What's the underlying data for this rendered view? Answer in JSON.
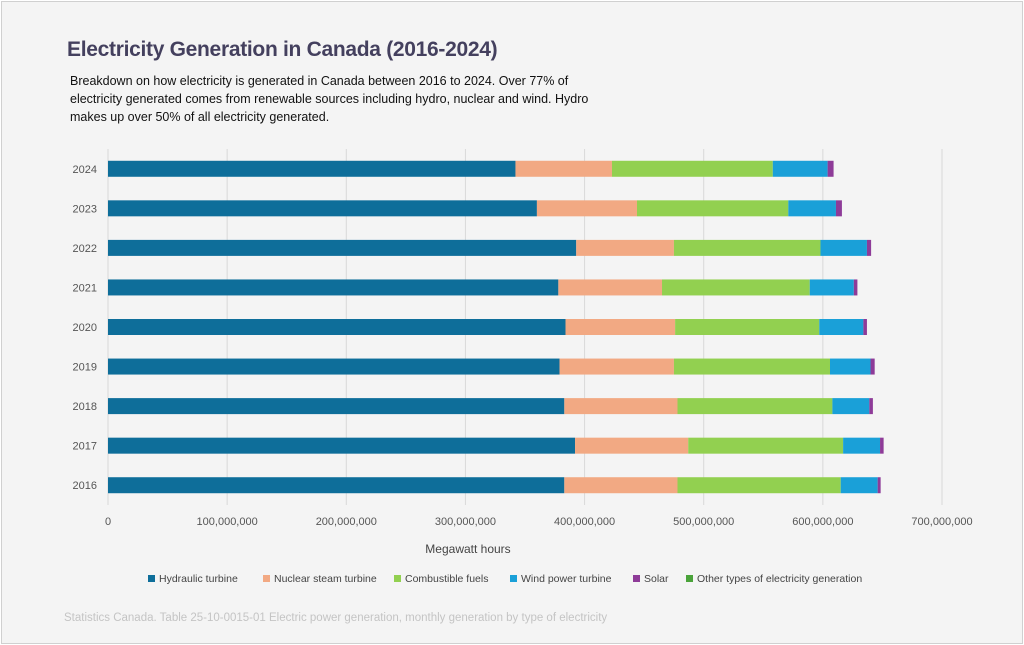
{
  "header": {
    "title": "Electricity Generation in Canada (2016-2024)",
    "subtitle": "Breakdown on how electricity is generated in Canada between 2016 to 2024. Over 77% of electricity generated comes from renewable sources including hydro, nuclear and wind. Hydro makes up over 50% of all electricity generated."
  },
  "source": "Statistics Canada. Table 25-10-0015-01  Electric power generation, monthly generation by type of electricity",
  "chart_data": {
    "type": "bar",
    "orientation": "horizontal",
    "stacked": true,
    "title": "Electricity Generation in Canada (2016-2024)",
    "xlabel": "Megawatt hours",
    "ylabel": "",
    "xlim": [
      0,
      700000000
    ],
    "xticks": [
      0,
      100000000,
      200000000,
      300000000,
      400000000,
      500000000,
      600000000,
      700000000
    ],
    "xtick_labels": [
      "0",
      "100,000,000",
      "200,000,000",
      "300,000,000",
      "400,000,000",
      "500,000,000",
      "600,000,000",
      "700,000,000"
    ],
    "grid": true,
    "legend_position": "bottom",
    "categories": [
      "2024",
      "2023",
      "2022",
      "2021",
      "2020",
      "2019",
      "2018",
      "2017",
      "2016"
    ],
    "series": [
      {
        "name": "Hydraulic turbine",
        "color": "#0e6e9a",
        "values": [
          342000000,
          360000000,
          393000000,
          378000000,
          384000000,
          379000000,
          383000000,
          392000000,
          383000000
        ]
      },
      {
        "name": "Nuclear steam turbine",
        "color": "#f2a983",
        "values": [
          81000000,
          84000000,
          82000000,
          87000000,
          92000000,
          96000000,
          95000000,
          95000000,
          95000000
        ]
      },
      {
        "name": "Combustible fuels",
        "color": "#92d050",
        "values": [
          135000000,
          127000000,
          123000000,
          124000000,
          121000000,
          131000000,
          130000000,
          130000000,
          137000000
        ]
      },
      {
        "name": "Wind power turbine",
        "color": "#1aa0d8",
        "values": [
          46000000,
          40000000,
          39000000,
          37000000,
          37000000,
          34000000,
          31000000,
          31000000,
          31000000
        ]
      },
      {
        "name": "Solar",
        "color": "#8e3b98",
        "values": [
          5000000,
          5000000,
          3500000,
          3000000,
          3000000,
          3500000,
          3000000,
          3000000,
          2500000
        ]
      },
      {
        "name": "Other types of electricity generation",
        "color": "#4aa33a",
        "values": [
          0,
          0,
          0,
          0,
          0,
          0,
          0,
          0,
          0
        ]
      }
    ]
  }
}
